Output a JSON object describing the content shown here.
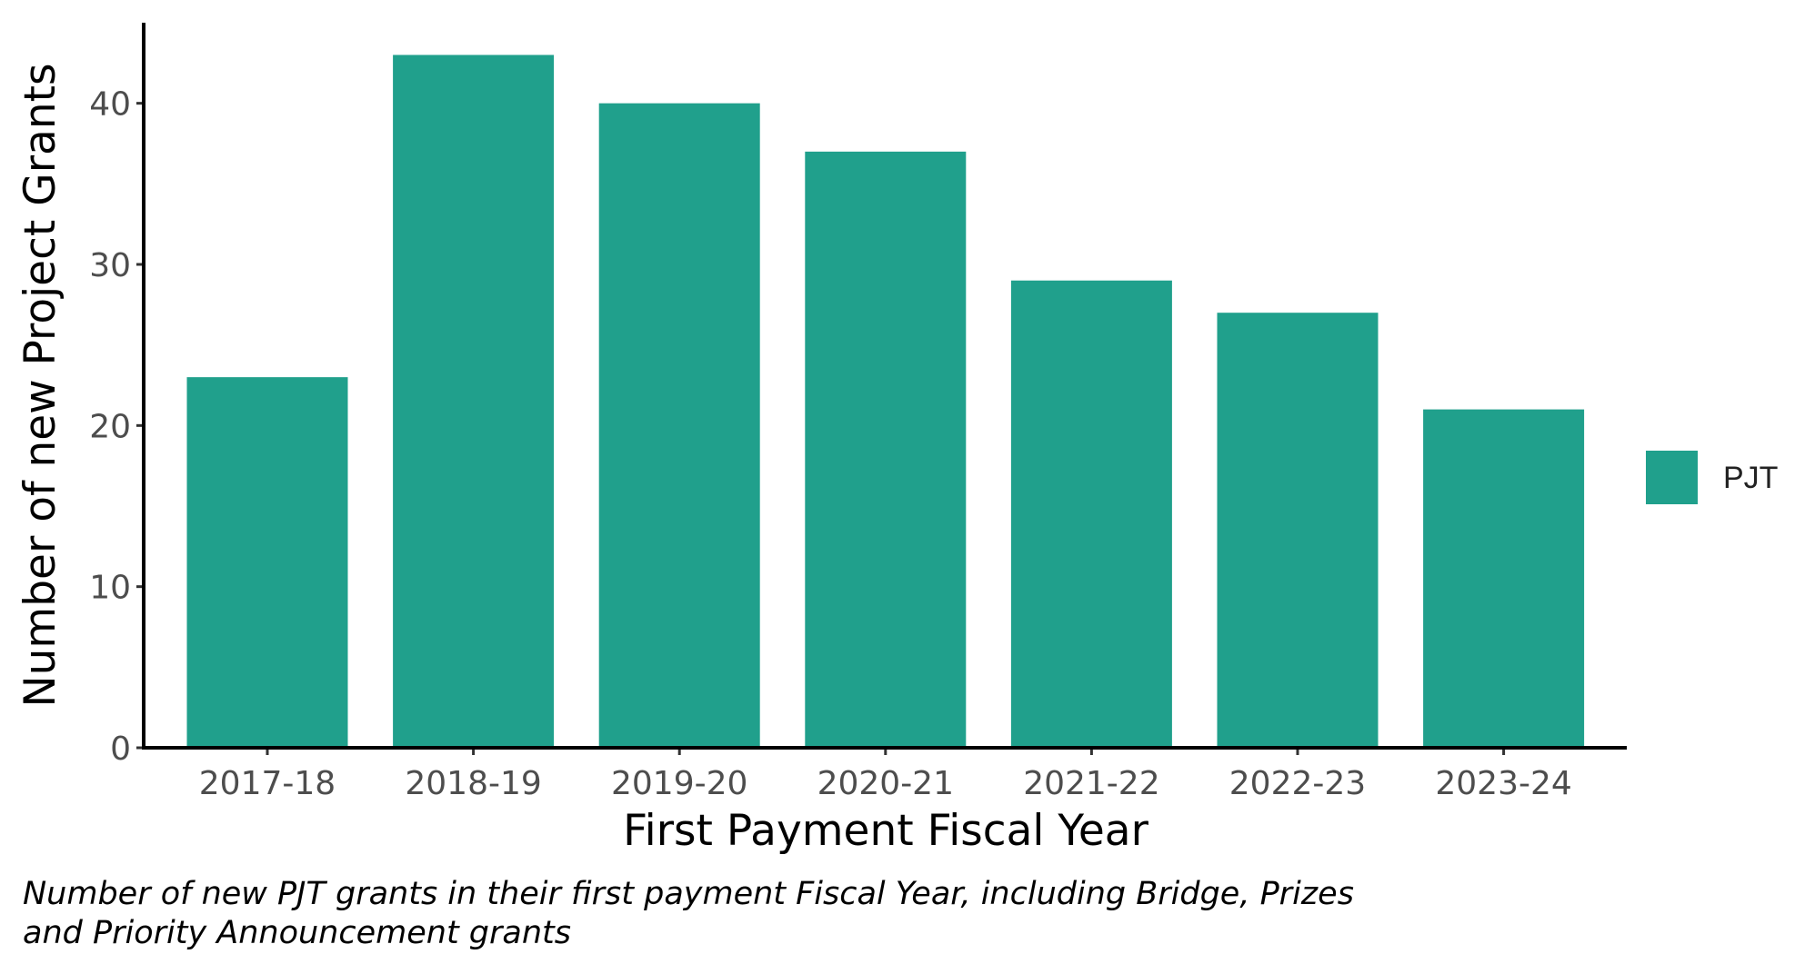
{
  "chart_data": {
    "type": "bar",
    "categories": [
      "2017-18",
      "2018-19",
      "2019-20",
      "2020-21",
      "2021-22",
      "2022-23",
      "2023-24"
    ],
    "series": [
      {
        "name": "PJT",
        "values": [
          23,
          43,
          40,
          37,
          29,
          27,
          21
        ]
      }
    ],
    "xlabel": "First Payment Fiscal Year",
    "ylabel": "Number of new Project Grants",
    "ylim": [
      0,
      45
    ],
    "yticks": [
      0,
      10,
      20,
      30,
      40
    ],
    "grid": false,
    "legend": {
      "position": "right",
      "entries": [
        "PJT"
      ]
    },
    "caption_lines": [
      "Number of new PJT grants in their first payment Fiscal Year, including Bridge, Prizes",
      "and Priority Announcement grants"
    ],
    "colors": {
      "bar": "#20A08C",
      "axis": "#000000"
    }
  }
}
